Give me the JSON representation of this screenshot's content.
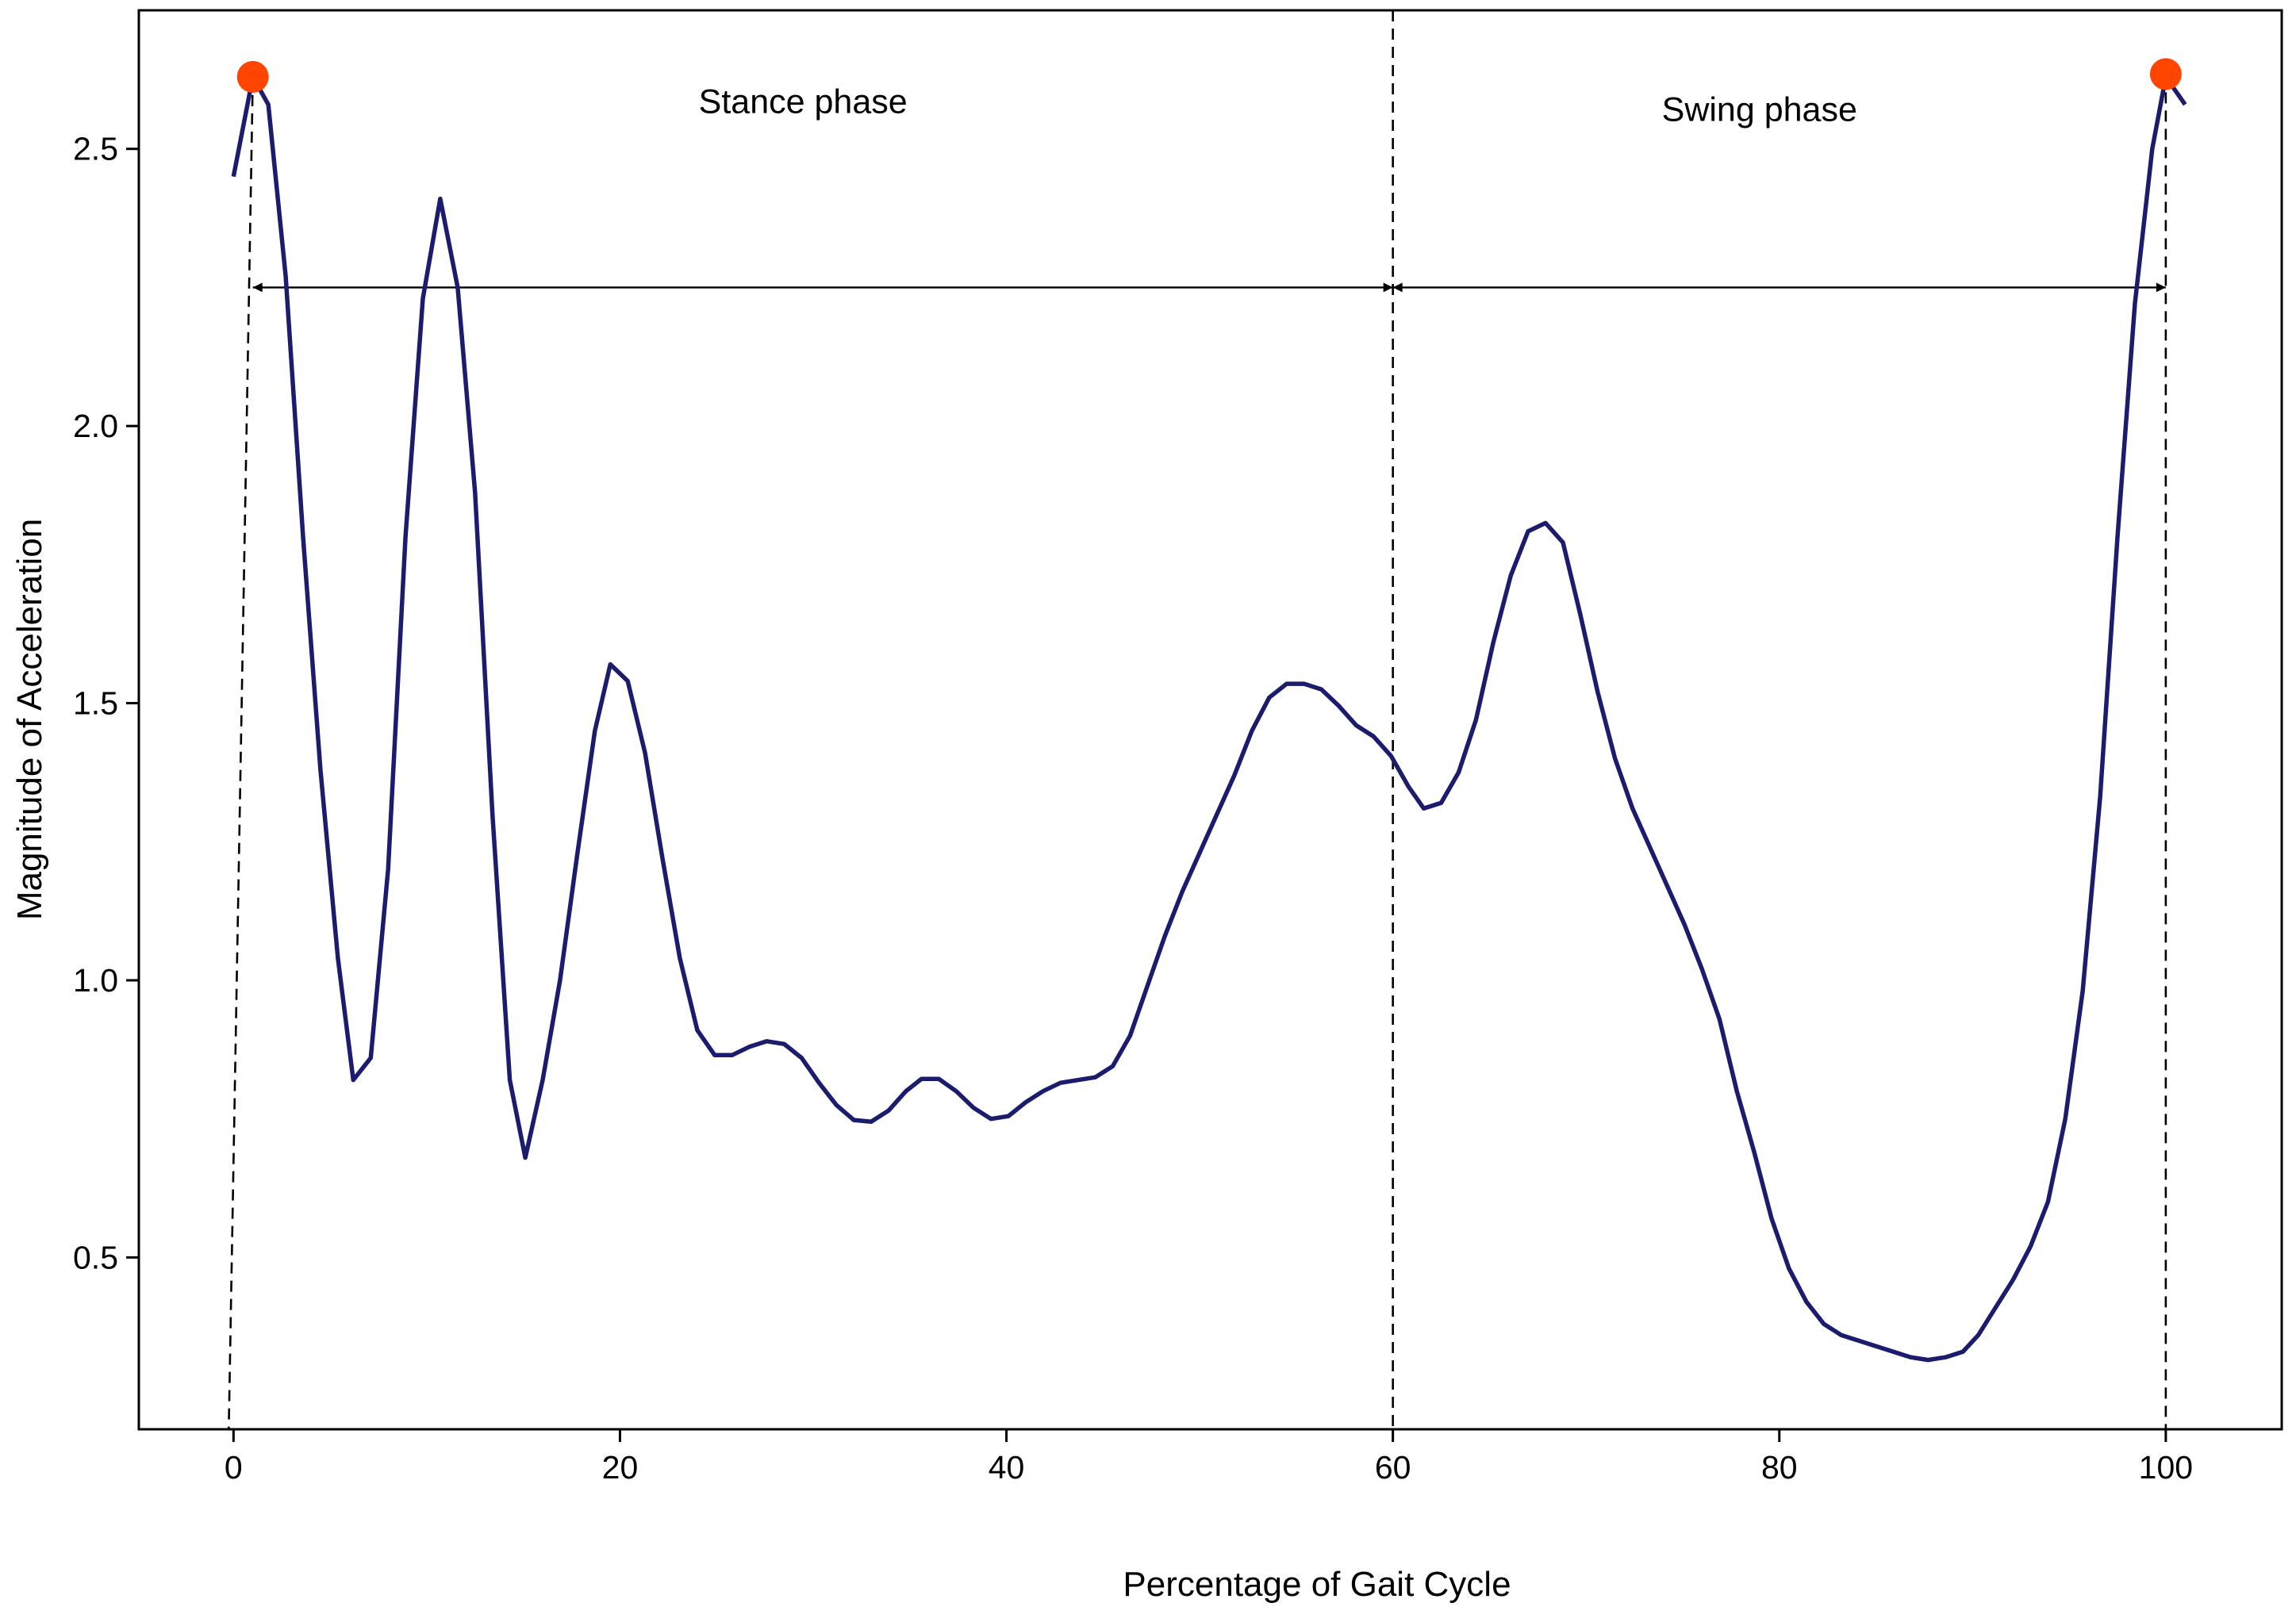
{
  "chart_data": {
    "type": "line",
    "xlabel": "Percentage of Gait Cycle",
    "ylabel": "Magnitude of Acceleration",
    "x": [
      0,
      1,
      1.8,
      2.7,
      3.6,
      4.5,
      5.4,
      6.2,
      7.1,
      8,
      8.9,
      9.8,
      10.7,
      11.6,
      12.5,
      13.4,
      14.3,
      15.1,
      16,
      16.9,
      17.8,
      18.7,
      19.5,
      20.4,
      21.3,
      22.2,
      23.1,
      24,
      24.9,
      25.8,
      26.7,
      27.6,
      28.5,
      29.4,
      30.3,
      31.2,
      32.1,
      33,
      33.9,
      34.8,
      35.6,
      36.5,
      37.4,
      38.3,
      39.2,
      40.1,
      41,
      41.9,
      42.8,
      43.7,
      44.6,
      45.5,
      46.4,
      47.3,
      48.2,
      49.1,
      50,
      50.9,
      51.8,
      52.7,
      53.6,
      54.5,
      55.4,
      56.3,
      57.2,
      58.1,
      59,
      59.9,
      60.8,
      61.6,
      62.5,
      63.4,
      64.3,
      65.2,
      66.1,
      67,
      67.9,
      68.8,
      69.7,
      70.6,
      71.5,
      72.4,
      73.3,
      74.2,
      75.1,
      76,
      76.9,
      77.8,
      78.7,
      79.6,
      80.5,
      81.4,
      82.3,
      83.2,
      84.1,
      85,
      85.9,
      86.8,
      87.7,
      88.6,
      89.5,
      90.3,
      91.2,
      92.1,
      93,
      93.9,
      94.8,
      95.7,
      96.6,
      97.5,
      98.4,
      99.3,
      100,
      101
    ],
    "series": [
      {
        "color": "#1c1c6e",
        "values": [
          2.45,
          2.63,
          2.58,
          2.27,
          1.8,
          1.38,
          1.04,
          0.82,
          0.86,
          1.2,
          1.8,
          2.23,
          2.41,
          2.25,
          1.88,
          1.3,
          0.82,
          0.68,
          0.82,
          1.0,
          1.23,
          1.45,
          1.57,
          1.54,
          1.41,
          1.22,
          1.04,
          0.91,
          0.865,
          0.865,
          0.88,
          0.89,
          0.885,
          0.86,
          0.815,
          0.775,
          0.748,
          0.745,
          0.765,
          0.8,
          0.822,
          0.822,
          0.8,
          0.77,
          0.75,
          0.755,
          0.78,
          0.8,
          0.815,
          0.82,
          0.825,
          0.845,
          0.9,
          0.99,
          1.08,
          1.16,
          1.23,
          1.3,
          1.37,
          1.45,
          1.51,
          1.535,
          1.535,
          1.525,
          1.495,
          1.46,
          1.44,
          1.405,
          1.35,
          1.31,
          1.32,
          1.375,
          1.47,
          1.61,
          1.73,
          1.81,
          1.825,
          1.79,
          1.66,
          1.52,
          1.4,
          1.31,
          1.24,
          1.17,
          1.1,
          1.02,
          0.93,
          0.8,
          0.69,
          0.57,
          0.48,
          0.42,
          0.38,
          0.36,
          0.35,
          0.34,
          0.33,
          0.32,
          0.315,
          0.32,
          0.33,
          0.36,
          0.41,
          0.46,
          0.52,
          0.6,
          0.75,
          0.98,
          1.33,
          1.8,
          2.22,
          2.5,
          2.63,
          2.58
        ]
      }
    ],
    "highlights": {
      "color": "#ff4500",
      "x": [
        1,
        100
      ],
      "y": [
        2.63,
        2.635
      ]
    },
    "phase_boundary": 60,
    "arrow_y": 2.25,
    "annotations": [
      "Stance phase",
      "Swing phase"
    ],
    "xlim": [
      -4.9,
      106
    ],
    "ylim": [
      0.19,
      2.75
    ],
    "xticks": [
      0,
      20,
      40,
      60,
      80,
      100
    ],
    "yticks": [
      0.5,
      {
        "value": 1,
        "label": "1.0"
      },
      1.5,
      {
        "value": 2,
        "label": "2.0"
      },
      2.5
    ],
    "grid": false
  }
}
